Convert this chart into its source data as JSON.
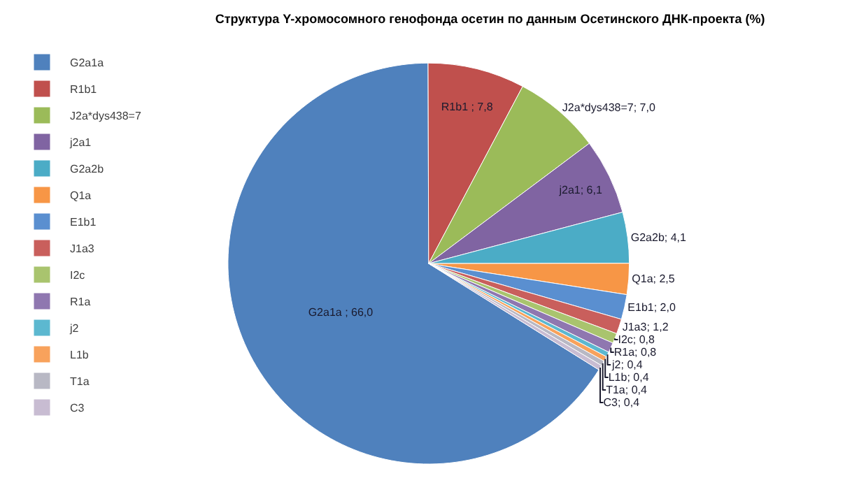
{
  "chart_data": {
    "type": "pie",
    "title": "Структура Y-хромосомного генофонда осетин по данным Осетинского ДНК-проекта (%)",
    "categories": [
      "G2a1a",
      "R1b1",
      "J2a*dys438=7",
      "j2a1",
      "G2a2b",
      "Q1a",
      "E1b1",
      "J1a3",
      "I2c",
      "R1a",
      "j2",
      "L1b",
      "T1a",
      "C3"
    ],
    "values": [
      66.0,
      7.8,
      7.0,
      6.1,
      4.1,
      2.5,
      2.0,
      1.2,
      0.8,
      0.8,
      0.4,
      0.4,
      0.4,
      0.4
    ],
    "value_labels": [
      "G2a1a ; 66,0",
      "R1b1 ; 7,8",
      "J2a*dys438=7; 7,0",
      "j2a1; 6,1",
      "G2a2b; 4,1",
      "Q1a; 2,5",
      "E1b1; 2,0",
      "J1a3; 1,2",
      "I2c; 0,8",
      "R1a; 0,8",
      "j2; 0,4",
      "L1b; 0,4",
      "T1a; 0,4",
      "C3; 0,4"
    ],
    "colors": [
      "#4f81bd",
      "#c0504d",
      "#9bbb59",
      "#8064a2",
      "#4bacc6",
      "#f79646",
      "#5a8fd0",
      "#c95f5c",
      "#a9c46e",
      "#8f77b0",
      "#5cb8d0",
      "#f8a25c",
      "#b8b8c4",
      "#c8bcd2"
    ],
    "legend": "left"
  }
}
